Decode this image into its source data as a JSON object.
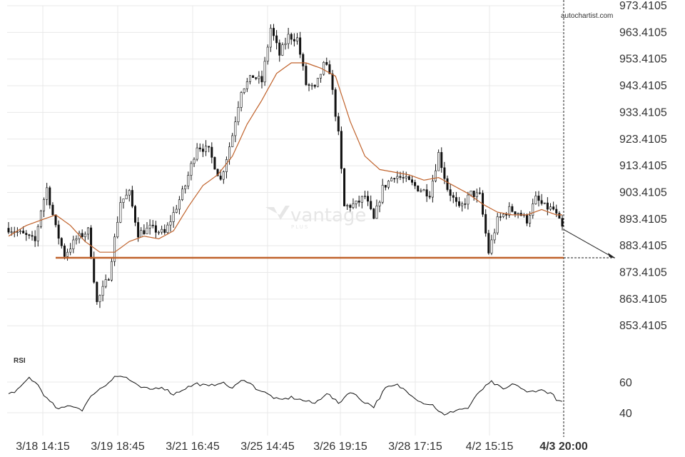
{
  "source": "autochartist.com",
  "watermark": {
    "brand": "vantage",
    "sub": "PLUS"
  },
  "colors": {
    "grid": "#e8e8e8",
    "candle": "#111111",
    "ma": "#c0622b",
    "support": "#c0622b",
    "rsi_line": "#111111",
    "axis_text": "#333333"
  },
  "chart_data": [
    {
      "type": "candlestick",
      "ylim": [
        848.4105,
        973.4105
      ],
      "y_ticks": [
        "973.4105",
        "963.4105",
        "953.4105",
        "943.4105",
        "933.4105",
        "923.4105",
        "913.4105",
        "903.4105",
        "893.4105",
        "883.4105",
        "873.4105",
        "863.4105",
        "853.4105"
      ],
      "x_ticks": [
        "3/18 14:15",
        "3/19 18:45",
        "3/21 16:45",
        "3/25 14:45",
        "3/26 19:15",
        "3/28 17:15",
        "4/2 15:15",
        "4/3 20:00"
      ],
      "highlight_tick": "4/3 20:00",
      "support_level": 878.9,
      "forecast": {
        "from": 889.5,
        "to": 878.9
      },
      "close_anchors": [
        [
          0,
          890
        ],
        [
          6,
          887
        ],
        [
          9,
          885
        ],
        [
          11,
          897
        ],
        [
          13,
          905
        ],
        [
          16,
          890
        ],
        [
          19,
          880
        ],
        [
          23,
          886
        ],
        [
          27,
          889
        ],
        [
          30,
          862
        ],
        [
          34,
          872
        ],
        [
          38,
          900
        ],
        [
          41,
          903
        ],
        [
          44,
          888
        ],
        [
          48,
          890
        ],
        [
          53,
          888
        ],
        [
          57,
          898
        ],
        [
          60,
          906
        ],
        [
          64,
          921
        ],
        [
          68,
          919
        ],
        [
          72,
          908
        ],
        [
          76,
          925
        ],
        [
          79,
          942
        ],
        [
          83,
          947
        ],
        [
          86,
          945
        ],
        [
          89,
          965
        ],
        [
          92,
          955
        ],
        [
          95,
          962
        ],
        [
          98,
          961
        ],
        [
          101,
          944
        ],
        [
          104,
          942
        ],
        [
          107,
          951
        ],
        [
          109,
          949
        ],
        [
          112,
          925
        ],
        [
          114,
          898
        ],
        [
          118,
          899
        ],
        [
          121,
          902
        ],
        [
          124,
          893
        ],
        [
          127,
          905
        ],
        [
          131,
          910
        ],
        [
          135,
          908
        ],
        [
          139,
          905
        ],
        [
          143,
          903
        ],
        [
          146,
          918
        ],
        [
          149,
          905
        ],
        [
          153,
          897
        ],
        [
          157,
          903
        ],
        [
          160,
          902
        ],
        [
          163,
          881
        ],
        [
          166,
          893
        ],
        [
          170,
          897
        ],
        [
          173,
          896
        ],
        [
          176,
          893
        ],
        [
          179,
          901
        ],
        [
          182,
          898
        ],
        [
          185,
          897
        ],
        [
          188,
          890
        ]
      ],
      "ma_anchors": [
        [
          0,
          887
        ],
        [
          6,
          891
        ],
        [
          11,
          893
        ],
        [
          16,
          895
        ],
        [
          21,
          891
        ],
        [
          26,
          885
        ],
        [
          31,
          881
        ],
        [
          36,
          881
        ],
        [
          41,
          885
        ],
        [
          46,
          887
        ],
        [
          51,
          886
        ],
        [
          56,
          889
        ],
        [
          61,
          898
        ],
        [
          66,
          906
        ],
        [
          71,
          910
        ],
        [
          76,
          917
        ],
        [
          81,
          929
        ],
        [
          86,
          938
        ],
        [
          91,
          948
        ],
        [
          96,
          952
        ],
        [
          101,
          952
        ],
        [
          106,
          950
        ],
        [
          111,
          947
        ],
        [
          116,
          930
        ],
        [
          121,
          917
        ],
        [
          126,
          912
        ],
        [
          131,
          911
        ],
        [
          136,
          910
        ],
        [
          141,
          908
        ],
        [
          146,
          909
        ],
        [
          151,
          906
        ],
        [
          156,
          903
        ],
        [
          161,
          899
        ],
        [
          166,
          896
        ],
        [
          171,
          895
        ],
        [
          176,
          895
        ],
        [
          181,
          897
        ],
        [
          186,
          895
        ],
        [
          188,
          895
        ]
      ]
    },
    {
      "type": "line",
      "title": "RSI",
      "ylim": [
        35,
        66
      ],
      "y_ticks": [
        "60",
        "40"
      ],
      "rsi_anchors": [
        [
          0,
          52
        ],
        [
          4,
          56
        ],
        [
          7,
          63
        ],
        [
          10,
          58
        ],
        [
          13,
          49
        ],
        [
          17,
          42
        ],
        [
          21,
          45
        ],
        [
          25,
          42
        ],
        [
          29,
          53
        ],
        [
          33,
          58
        ],
        [
          36,
          64
        ],
        [
          40,
          63
        ],
        [
          44,
          57
        ],
        [
          48,
          55
        ],
        [
          52,
          57
        ],
        [
          56,
          52
        ],
        [
          60,
          56
        ],
        [
          64,
          59
        ],
        [
          68,
          57
        ],
        [
          72,
          60
        ],
        [
          76,
          56
        ],
        [
          80,
          62
        ],
        [
          84,
          56
        ],
        [
          88,
          52
        ],
        [
          92,
          48
        ],
        [
          96,
          50
        ],
        [
          100,
          48
        ],
        [
          104,
          46
        ],
        [
          108,
          53
        ],
        [
          112,
          46
        ],
        [
          116,
          54
        ],
        [
          120,
          48
        ],
        [
          124,
          44
        ],
        [
          128,
          56
        ],
        [
          132,
          58
        ],
        [
          136,
          53
        ],
        [
          140,
          47
        ],
        [
          144,
          45
        ],
        [
          148,
          38
        ],
        [
          152,
          42
        ],
        [
          156,
          43
        ],
        [
          160,
          54
        ],
        [
          164,
          60
        ],
        [
          168,
          55
        ],
        [
          172,
          59
        ],
        [
          176,
          53
        ],
        [
          180,
          55
        ],
        [
          184,
          53
        ],
        [
          187,
          47
        ],
        [
          188,
          47
        ]
      ]
    }
  ]
}
